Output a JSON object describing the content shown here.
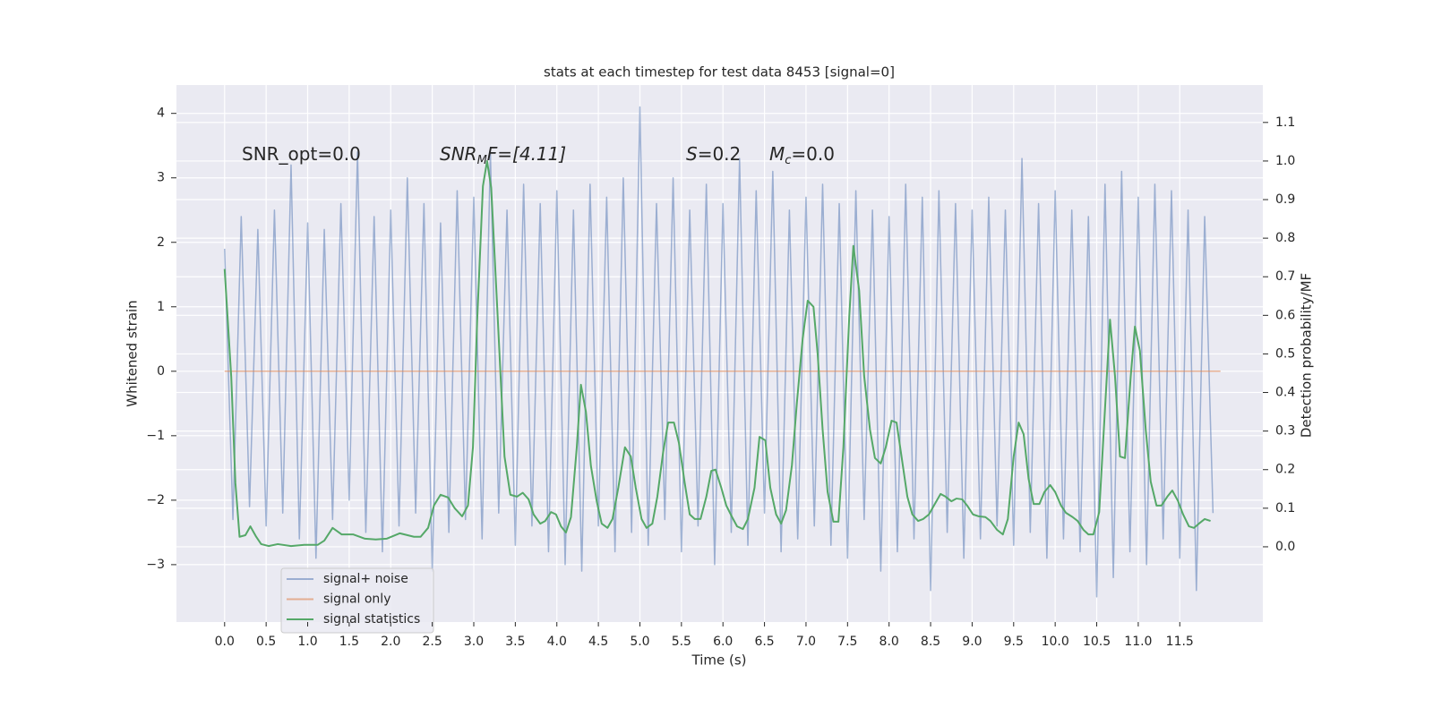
{
  "chart_data": {
    "type": "line",
    "title": "stats at each timestep for test data 8453 [signal=0]",
    "xlabel": "Time (s)",
    "ylabel": "Whitened strain",
    "y2label": "Detection probability/MF",
    "annotations": [
      [
        "SNR_opt=0.0"
      ],
      [
        "SNR",
        "M",
        "F=[4.11]"
      ],
      [
        "S",
        "=0.2"
      ],
      [
        "M",
        "c",
        "=0.0"
      ]
    ],
    "grid": true,
    "legend": "lower left",
    "xlim": [
      -0.58,
      12.5
    ],
    "ylim": [
      -3.89,
      4.44
    ],
    "y2lim": [
      -0.195,
      1.197
    ],
    "xticks": [
      {
        "value": 0,
        "label": "0.0"
      },
      0.5,
      {
        "value": 1,
        "label": "1.0"
      },
      1.5,
      {
        "value": 2,
        "label": "2.0"
      },
      2.5,
      {
        "value": 3,
        "label": "3.0"
      },
      3.5,
      {
        "value": 4,
        "label": "4.0"
      },
      4.5,
      {
        "value": 5,
        "label": "5.0"
      },
      5.5,
      {
        "value": 6,
        "label": "6.0"
      },
      6.5,
      {
        "value": 7,
        "label": "7.0"
      },
      7.5,
      {
        "value": 8,
        "label": "8.0"
      },
      8.5,
      {
        "value": 9,
        "label": "9.0"
      },
      9.5,
      {
        "value": 10,
        "label": "10.0"
      },
      10.5,
      {
        "value": 11,
        "label": "11.0"
      },
      11.5
    ],
    "yticks": [
      {
        "value": -3,
        "label": "−3"
      },
      {
        "value": -2,
        "label": "−2"
      },
      {
        "value": -1,
        "label": "−1"
      },
      0,
      1,
      2,
      3,
      4
    ],
    "y2ticks": [
      {
        "value": 0,
        "label": "0.0"
      },
      0.1,
      0.2,
      0.3,
      0.4,
      0.5,
      0.6,
      0.7,
      0.8,
      0.9,
      {
        "value": 1,
        "label": "1.0"
      },
      1.1
    ],
    "series": [
      {
        "name": "signal+ noise",
        "color": "#4c72b0",
        "x": [
          0,
          0.1,
          0.2,
          0.3,
          0.4,
          0.5,
          0.6,
          0.7,
          0.8,
          0.9,
          1,
          1.1,
          1.2,
          1.3,
          1.4,
          1.5,
          1.6,
          1.7,
          1.8,
          1.9,
          2,
          2.1,
          2.2,
          2.3,
          2.4,
          2.5,
          2.6,
          2.7,
          2.8,
          2.9,
          3,
          3.1,
          3.2,
          3.3,
          3.4,
          3.5,
          3.6,
          3.7,
          3.8,
          3.9,
          4,
          4.1,
          4.2,
          4.3,
          4.4,
          4.5,
          4.6,
          4.7,
          4.8,
          4.9,
          5,
          5.1,
          5.2,
          5.3,
          5.4,
          5.5,
          5.6,
          5.7,
          5.8,
          5.9,
          6,
          6.1,
          6.2,
          6.3,
          6.4,
          6.5,
          6.6,
          6.7,
          6.8,
          6.9,
          7,
          7.1,
          7.2,
          7.3,
          7.4,
          7.5,
          7.6,
          7.7,
          7.8,
          7.9,
          8,
          8.1,
          8.2,
          8.3,
          8.4,
          8.5,
          8.6,
          8.7,
          8.8,
          8.9,
          9,
          9.1,
          9.2,
          9.3,
          9.4,
          9.5,
          9.6,
          9.7,
          9.8,
          9.9,
          10,
          10.1,
          10.2,
          10.3,
          10.4,
          10.5,
          10.6,
          10.7,
          10.8,
          10.9,
          11,
          11.1,
          11.2,
          11.3,
          11.4,
          11.5,
          11.6,
          11.7,
          11.8,
          11.9
        ],
        "values": [
          1.9,
          -2.3,
          2.4,
          -2.1,
          2.2,
          -2.4,
          2.5,
          -2.2,
          3.2,
          -2.6,
          2.3,
          -2.9,
          2.2,
          -2.3,
          2.6,
          -2.0,
          3.4,
          -2.5,
          2.4,
          -2.8,
          2.5,
          -2.4,
          3.0,
          -2.2,
          2.6,
          -3.1,
          2.3,
          -2.5,
          2.8,
          -2.3,
          2.7,
          -2.6,
          3.4,
          -2.2,
          2.5,
          -2.7,
          2.9,
          -2.4,
          2.6,
          -2.8,
          2.8,
          -3.0,
          2.5,
          -3.1,
          2.9,
          -2.4,
          2.7,
          -2.8,
          3.0,
          -2.5,
          4.1,
          -2.7,
          2.6,
          -2.3,
          3.0,
          -2.8,
          2.5,
          -2.4,
          2.9,
          -3.0,
          2.6,
          -2.5,
          3.3,
          -2.7,
          2.8,
          -2.2,
          3.1,
          -2.8,
          2.5,
          -2.6,
          2.7,
          -2.4,
          2.9,
          -2.7,
          2.6,
          -2.9,
          2.8,
          -2.3,
          2.5,
          -3.1,
          2.4,
          -2.8,
          2.9,
          -2.6,
          2.7,
          -3.4,
          2.8,
          -2.5,
          2.6,
          -2.9,
          2.5,
          -2.6,
          2.7,
          -2.4,
          2.5,
          -2.7,
          3.3,
          -2.5,
          2.6,
          -2.9,
          2.8,
          -2.6,
          2.5,
          -2.8,
          2.4,
          -3.5,
          2.9,
          -3.2,
          3.1,
          -2.8,
          2.7,
          -3.0,
          2.9,
          -2.6,
          2.8,
          -2.9,
          2.5,
          -3.4,
          2.4,
          -2.2
        ]
      },
      {
        "name": "signal only",
        "color": "#dd8452",
        "x": [
          0,
          11.99
        ],
        "values": [
          0,
          0
        ]
      },
      {
        "name": "signal statistics",
        "color": "#55a868",
        "axis": "y2",
        "x": [
          0,
          0.08,
          0.13,
          0.18,
          0.25,
          0.31,
          0.38,
          0.44,
          0.53,
          0.64,
          0.8,
          0.96,
          1.12,
          1.2,
          1.3,
          1.41,
          1.55,
          1.69,
          1.82,
          1.95,
          2.11,
          2.28,
          2.36,
          2.45,
          2.52,
          2.6,
          2.69,
          2.77,
          2.86,
          2.93,
          2.99,
          3.04,
          3.11,
          3.16,
          3.21,
          3.28,
          3.37,
          3.44,
          3.52,
          3.59,
          3.66,
          3.72,
          3.8,
          3.86,
          3.93,
          3.99,
          4.05,
          4.11,
          4.17,
          4.24,
          4.29,
          4.35,
          4.41,
          4.48,
          4.54,
          4.61,
          4.67,
          4.74,
          4.82,
          4.89,
          4.95,
          5.02,
          5.08,
          5.15,
          5.21,
          5.28,
          5.34,
          5.41,
          5.47,
          5.54,
          5.6,
          5.66,
          5.73,
          5.8,
          5.86,
          5.91,
          5.98,
          6.04,
          6.11,
          6.17,
          6.24,
          6.3,
          6.38,
          6.44,
          6.51,
          6.57,
          6.64,
          6.7,
          6.76,
          6.83,
          6.89,
          6.96,
          7.02,
          7.09,
          7.14,
          7.2,
          7.26,
          7.33,
          7.39,
          7.45,
          7.52,
          7.57,
          7.64,
          7.7,
          7.77,
          7.83,
          7.9,
          7.96,
          8.03,
          8.09,
          8.15,
          8.22,
          8.28,
          8.35,
          8.41,
          8.48,
          8.54,
          8.62,
          8.68,
          8.75,
          8.81,
          8.88,
          8.94,
          9.01,
          9.08,
          9.16,
          9.22,
          9.3,
          9.37,
          9.43,
          9.5,
          9.56,
          9.62,
          9.68,
          9.74,
          9.81,
          9.87,
          9.94,
          10,
          10.07,
          10.13,
          10.21,
          10.27,
          10.34,
          10.4,
          10.46,
          10.53,
          10.61,
          10.66,
          10.72,
          10.78,
          10.84,
          10.91,
          10.96,
          11.02,
          11.09,
          11.15,
          11.22,
          11.28,
          11.35,
          11.41,
          11.48,
          11.54,
          11.61,
          11.67,
          11.73,
          11.8,
          11.87
        ],
        "values": [
          0.72,
          0.44,
          0.165,
          0.026,
          0.03,
          0.053,
          0.026,
          0.007,
          0.002,
          0.007,
          0.002,
          0.005,
          0.005,
          0.016,
          0.049,
          0.032,
          0.032,
          0.021,
          0.019,
          0.021,
          0.035,
          0.026,
          0.026,
          0.049,
          0.107,
          0.135,
          0.128,
          0.1,
          0.079,
          0.107,
          0.258,
          0.582,
          0.935,
          1.0,
          0.93,
          0.63,
          0.234,
          0.135,
          0.13,
          0.14,
          0.123,
          0.084,
          0.06,
          0.067,
          0.09,
          0.084,
          0.053,
          0.037,
          0.077,
          0.258,
          0.42,
          0.35,
          0.21,
          0.118,
          0.06,
          0.049,
          0.072,
          0.153,
          0.258,
          0.234,
          0.153,
          0.072,
          0.049,
          0.06,
          0.13,
          0.246,
          0.322,
          0.322,
          0.269,
          0.165,
          0.084,
          0.072,
          0.072,
          0.13,
          0.197,
          0.2,
          0.153,
          0.107,
          0.077,
          0.053,
          0.046,
          0.072,
          0.153,
          0.285,
          0.276,
          0.153,
          0.084,
          0.06,
          0.095,
          0.211,
          0.373,
          0.54,
          0.638,
          0.622,
          0.5,
          0.304,
          0.142,
          0.065,
          0.065,
          0.258,
          0.594,
          0.78,
          0.664,
          0.443,
          0.304,
          0.23,
          0.216,
          0.258,
          0.327,
          0.322,
          0.234,
          0.13,
          0.084,
          0.067,
          0.072,
          0.084,
          0.107,
          0.137,
          0.13,
          0.118,
          0.125,
          0.123,
          0.107,
          0.084,
          0.079,
          0.077,
          0.067,
          0.044,
          0.032,
          0.072,
          0.234,
          0.322,
          0.292,
          0.176,
          0.111,
          0.111,
          0.142,
          0.16,
          0.142,
          0.107,
          0.088,
          0.077,
          0.067,
          0.044,
          0.032,
          0.032,
          0.09,
          0.397,
          0.589,
          0.443,
          0.234,
          0.23,
          0.443,
          0.571,
          0.508,
          0.304,
          0.169,
          0.107,
          0.107,
          0.13,
          0.146,
          0.118,
          0.084,
          0.053,
          0.049,
          0.06,
          0.072,
          0.067
        ]
      }
    ]
  }
}
